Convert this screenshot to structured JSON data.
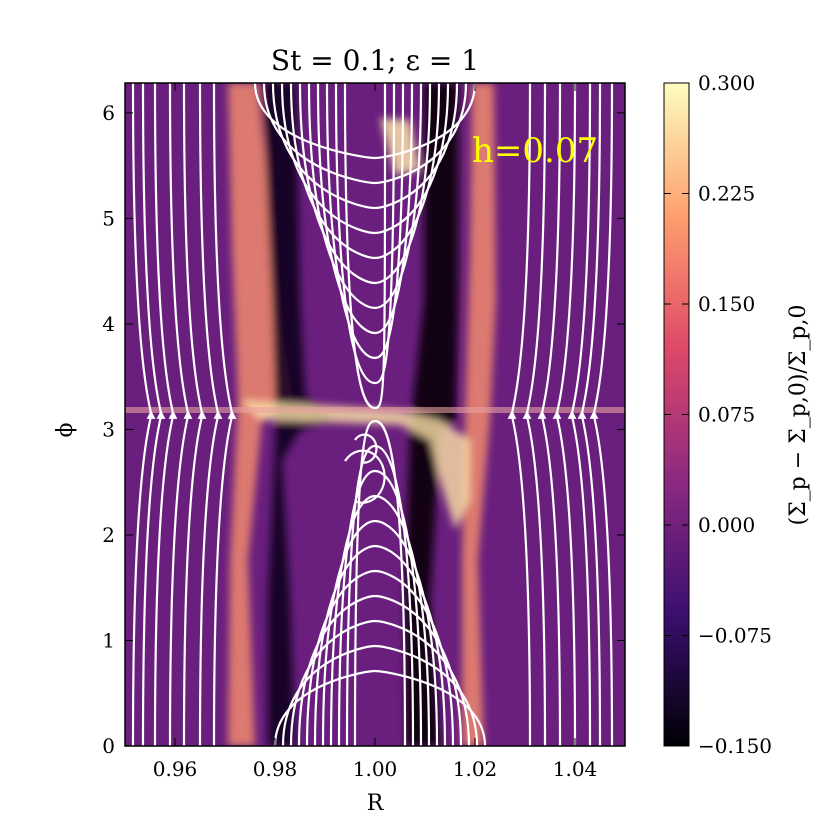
{
  "chart_data": {
    "type": "heatmap",
    "title": "St = 0.1; ε = 1",
    "xlabel": "R",
    "ylabel": "ϕ",
    "xlim": [
      0.95,
      1.05
    ],
    "ylim": [
      0,
      6.2832
    ],
    "x_ticks": [
      0.96,
      0.98,
      1.0,
      1.02,
      1.04
    ],
    "x_tick_labels": [
      "0.96",
      "0.98",
      "1.00",
      "1.02",
      "1.04"
    ],
    "y_ticks": [
      0,
      1,
      2,
      3,
      4,
      5,
      6
    ],
    "y_tick_labels": [
      "0",
      "1",
      "2",
      "3",
      "4",
      "5",
      "6"
    ],
    "annotation": "h=0.07",
    "annotation_color": "#ffff00",
    "streamline_color": "#ffffff",
    "colorbar": {
      "label": "(Σ_p − Σ_p,0)/Σ_p,0",
      "vmin": -0.15,
      "vmax": 0.3,
      "ticks": [
        -0.15,
        -0.075,
        0.0,
        0.075,
        0.15,
        0.225,
        0.3
      ],
      "tick_labels": [
        "−0.150",
        "−0.075",
        "0.000",
        "0.075",
        "0.150",
        "0.225",
        "0.300"
      ],
      "colormap": "magma",
      "colors": [
        "#000004",
        "#3b0f70",
        "#8c2981",
        "#de4968",
        "#fe9f6d",
        "#fcfdbf"
      ]
    },
    "features": [
      {
        "name": "dense ring",
        "R": 0.975,
        "value": 0.2
      },
      {
        "name": "dense ring",
        "R": 1.021,
        "value": 0.2
      },
      {
        "name": "gap",
        "R": 0.985,
        "value": -0.15
      },
      {
        "name": "gap",
        "R": 1.01,
        "value": -0.15
      },
      {
        "name": "planet",
        "R": 1.0,
        "phi": 3.1416
      }
    ]
  }
}
